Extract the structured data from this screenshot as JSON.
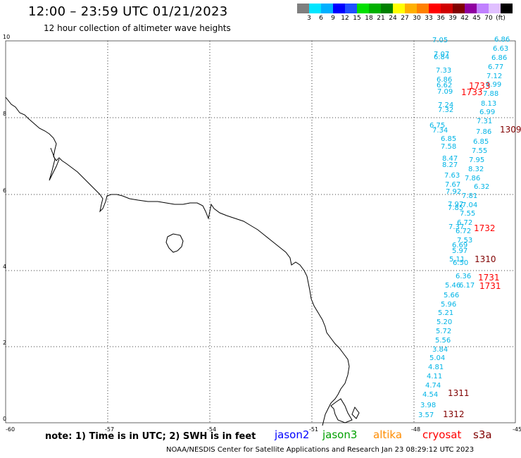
{
  "header": {
    "title": "12:00 – 23:59 UTC 01/21/2023",
    "subtitle": "12 hour collection of altimeter wave heights"
  },
  "colorbar": {
    "colors": [
      "#7f7f7f",
      "#00e5ff",
      "#00b0ff",
      "#0000ff",
      "#2050ff",
      "#00e000",
      "#00b000",
      "#008000",
      "#ffff00",
      "#ffb000",
      "#ff8000",
      "#ff0000",
      "#d00000",
      "#800000",
      "#9000a0",
      "#c080ff",
      "#e0c0ff",
      "#000000"
    ],
    "labels": [
      "3",
      "6",
      "9",
      "12",
      "15",
      "18",
      "21",
      "24",
      "27",
      "30",
      "33",
      "36",
      "39",
      "42",
      "45",
      "70",
      "(ft)"
    ],
    "unit": "(ft)"
  },
  "axes": {
    "x_ticks": [
      "-60",
      "-57",
      "-54",
      "-51",
      "-48",
      "-45"
    ],
    "y_ticks": [
      "0",
      "2",
      "4",
      "6",
      "8",
      "10"
    ]
  },
  "readings_cyan": [
    "7.05",
    "6.86",
    "6.63",
    "7.07",
    "6.84",
    "6.86",
    "6.77",
    "7.33",
    "7.12",
    "6.86",
    "6.99",
    "6.62",
    "7.09",
    "7.88",
    "8.13",
    "7.24",
    "7.32",
    "6.99",
    "7.31",
    "6.75",
    "7.34",
    "7.86",
    "6.85",
    "6.85",
    "7.58",
    "7.55",
    "8.47",
    "7.95",
    "8.27",
    "8.32",
    "7.63",
    "7.86",
    "7.67",
    "6.32",
    "7.92",
    "7.81",
    "7.97",
    "7.04",
    "7.85",
    "7.55",
    "6.72",
    "7.37",
    "6.72",
    "7.53",
    "6.69",
    "5.97",
    "5.11",
    "6.50",
    "6.36",
    "5.46",
    "6.17",
    "5.66",
    "5.96",
    "5.21",
    "5.20",
    "5.72",
    "5.56",
    "3.84",
    "5.04",
    "4.81",
    "4.11",
    "4.74",
    "4.54",
    "3.98",
    "3.57"
  ],
  "readings_red": [
    "1733",
    "1733",
    "1732",
    "1731",
    "1731"
  ],
  "readings_darkred": [
    "1309",
    "1310",
    "1311",
    "1312"
  ],
  "note": "note:  1) Time is in UTC;  2) SWH is in feet",
  "satellites": [
    {
      "name": "jason2",
      "color": "#0000ff"
    },
    {
      "name": "jason3",
      "color": "#00a000"
    },
    {
      "name": "altika",
      "color": "#ff8c00"
    },
    {
      "name": "cryosat",
      "color": "#ff0000"
    },
    {
      "name": "s3a",
      "color": "#800000"
    }
  ],
  "credit": "NOAA/NESDIS Center for Satellite Applications and Research    Jan 23 08:29:12 UTC 2023"
}
